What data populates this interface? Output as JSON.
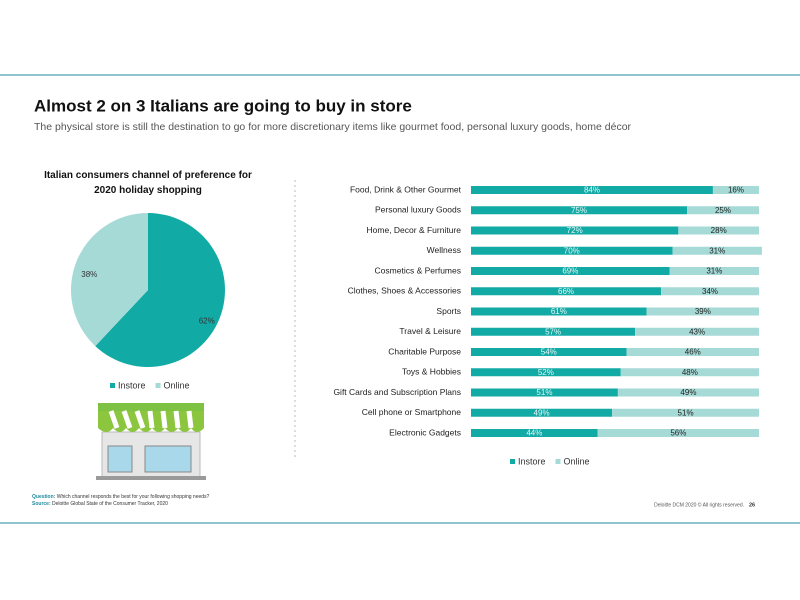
{
  "header": {
    "title": "Almost 2 on 3 Italians are going to buy in store",
    "subtitle": "The physical store is still the destination to go for more discretionary items like gourmet food, personal luxury goods, home décor"
  },
  "chart_data": [
    {
      "type": "pie",
      "title": "Italian consumers channel of preference for 2020 holiday shopping",
      "categories": [
        "Instore",
        "Online"
      ],
      "values": [
        62,
        38
      ],
      "value_labels": [
        "62%",
        "38%"
      ],
      "colors": [
        "#12aaa5",
        "#a6dad7"
      ],
      "legend": "bottom"
    },
    {
      "type": "stacked-bar",
      "orientation": "horizontal",
      "categories": [
        "Food, Drink & Other Gourmet",
        "Personal luxury Goods",
        "Home, Decor & Furniture",
        "Wellness",
        "Cosmetics & Perfumes",
        "Clothes, Shoes & Accessories",
        "Sports",
        "Travel & Leisure",
        "Charitable Purpose",
        "Toys & Hobbies",
        "Gift Cards and Subscription Plans",
        "Cell phone or Smartphone",
        "Electronic Gadgets"
      ],
      "series": [
        {
          "name": "Instore",
          "color": "#12aaa5",
          "values": [
            84,
            75,
            72,
            70,
            69,
            66,
            61,
            57,
            54,
            52,
            51,
            49,
            44
          ],
          "value_labels": [
            "84%",
            "75%",
            "72%",
            "70%",
            "69%",
            "66%",
            "61%",
            "57%",
            "54%",
            "52%",
            "51%",
            "49%",
            "44%"
          ]
        },
        {
          "name": "Online",
          "color": "#a6dad7",
          "values": [
            16,
            25,
            28,
            31,
            31,
            34,
            39,
            43,
            46,
            48,
            49,
            51,
            56
          ],
          "value_labels": [
            "16%",
            "25%",
            "28%",
            "31%",
            "31%",
            "34%",
            "39%",
            "43%",
            "46%",
            "48%",
            "49%",
            "51%",
            "56%"
          ]
        }
      ],
      "legend": "bottom"
    }
  ],
  "footer": {
    "question_label": "Question:",
    "question": "Which channel responds the best for your following shopping needs?",
    "source_label": "Source:",
    "source": "Deloitte Global State of the Consumer Tracker, 2020",
    "copyright": "Deloitte DCM 2020 ©  All rights reserved.",
    "page_number": "26"
  }
}
